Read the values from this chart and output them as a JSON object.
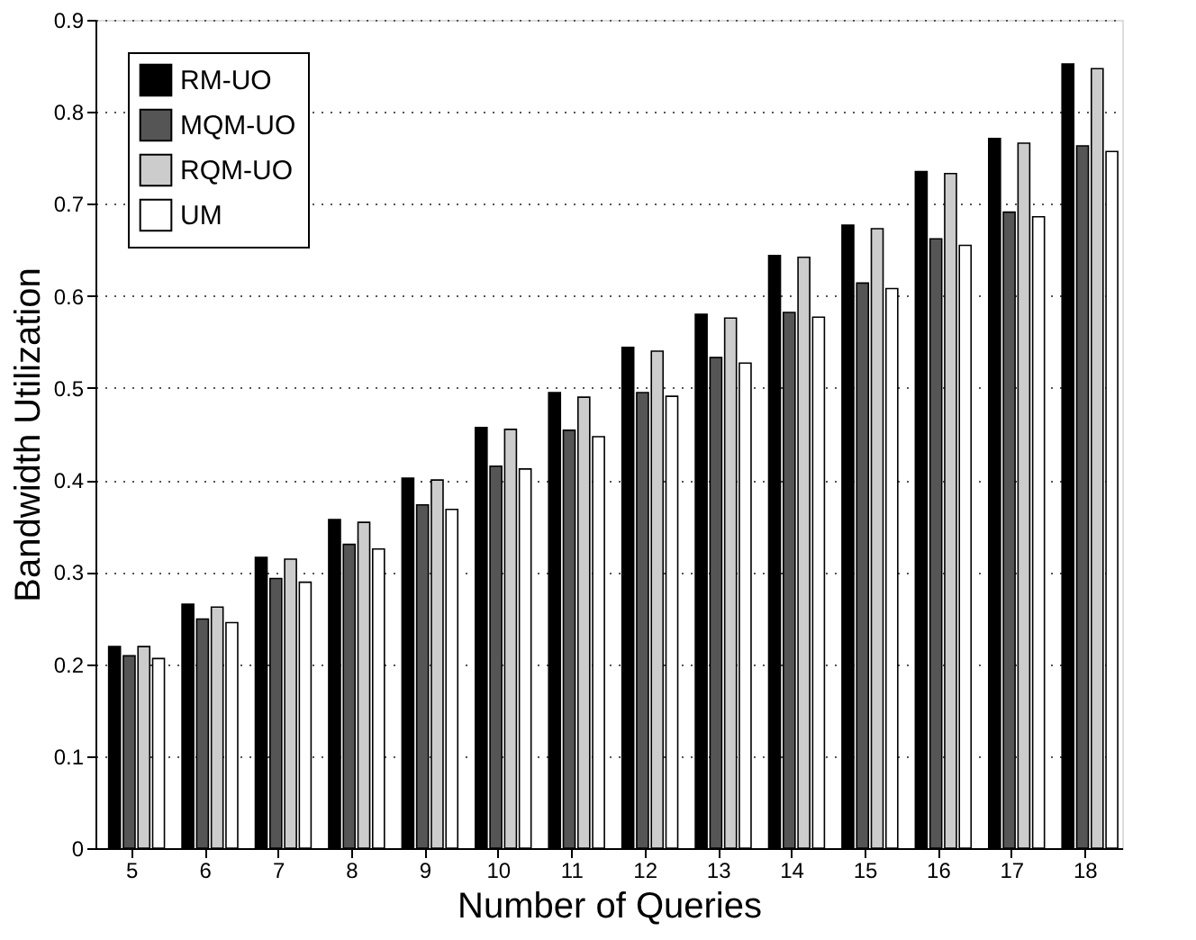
{
  "chart_data": {
    "type": "bar",
    "xlabel": "Number of Queries",
    "ylabel": "Bandwidth Utilization",
    "categories": [
      "5",
      "6",
      "7",
      "8",
      "9",
      "10",
      "11",
      "12",
      "13",
      "14",
      "15",
      "16",
      "17",
      "18"
    ],
    "series": [
      {
        "name": "RM-UO",
        "color": "#000000",
        "values": [
          0.219,
          0.265,
          0.316,
          0.357,
          0.402,
          0.457,
          0.495,
          0.544,
          0.58,
          0.644,
          0.677,
          0.735,
          0.771,
          0.852
        ]
      },
      {
        "name": "MQM-UO",
        "color": "#555555",
        "values": [
          0.209,
          0.249,
          0.293,
          0.33,
          0.373,
          0.415,
          0.454,
          0.495,
          0.533,
          0.582,
          0.614,
          0.662,
          0.691,
          0.763
        ]
      },
      {
        "name": "RQM-UO",
        "color": "#cccccc",
        "values": [
          0.219,
          0.262,
          0.314,
          0.354,
          0.4,
          0.455,
          0.49,
          0.54,
          0.576,
          0.642,
          0.673,
          0.733,
          0.766,
          0.847
        ]
      },
      {
        "name": "UM",
        "color": "#ffffff",
        "values": [
          0.206,
          0.245,
          0.289,
          0.325,
          0.368,
          0.412,
          0.447,
          0.491,
          0.527,
          0.577,
          0.608,
          0.655,
          0.686,
          0.757
        ]
      }
    ],
    "ylim": [
      0,
      0.9
    ],
    "yticks": [
      0,
      0.1,
      0.2,
      0.3,
      0.4,
      0.5,
      0.6,
      0.7,
      0.8,
      0.9
    ],
    "grid": "y",
    "legend": "top left"
  }
}
